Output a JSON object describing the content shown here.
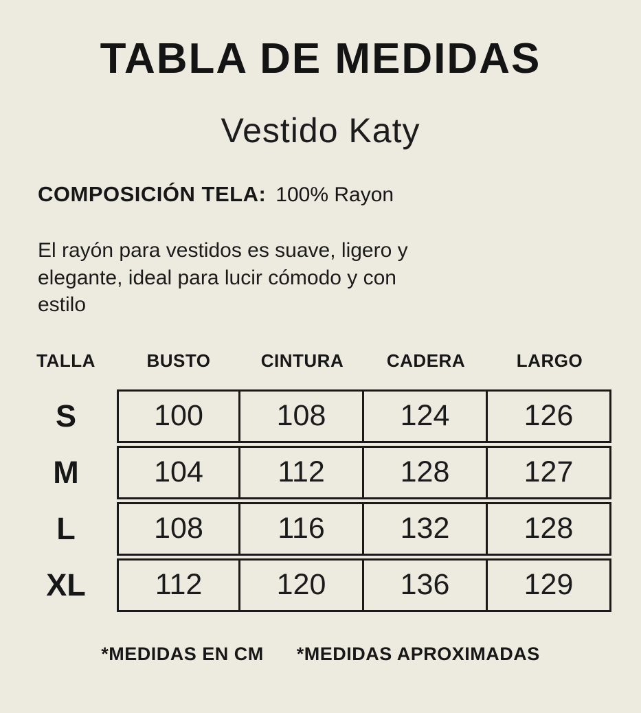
{
  "header": {
    "title": "TABLA DE MEDIDAS",
    "subtitle": "Vestido Katy"
  },
  "composition": {
    "label": "COMPOSICIÓN TELA:",
    "value": "100% Rayon"
  },
  "description": " El rayón para vestidos es suave, ligero y\nelegante, ideal para lucir cómodo y con\nestilo",
  "table": {
    "headers": [
      "TALLA",
      "BUSTO",
      "CINTURA",
      "CADERA",
      "LARGO"
    ],
    "rows": [
      {
        "size": "S",
        "busto": "100",
        "cintura": "108",
        "cadera": "124",
        "largo": "126"
      },
      {
        "size": "M",
        "busto": "104",
        "cintura": "112",
        "cadera": "128",
        "largo": "127"
      },
      {
        "size": "L",
        "busto": "108",
        "cintura": "116",
        "cadera": "132",
        "largo": "128"
      },
      {
        "size": "XL",
        "busto": "112",
        "cintura": "120",
        "cadera": "136",
        "largo": "129"
      }
    ]
  },
  "footnotes": {
    "units": "*MEDIDAS EN CM",
    "approx": "*MEDIDAS APROXIMADAS"
  },
  "colors": {
    "background": "#edebdf",
    "text": "#171717",
    "border": "#1a1a1a"
  }
}
